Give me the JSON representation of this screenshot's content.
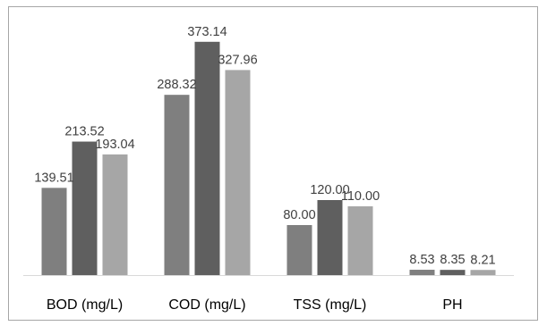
{
  "chart_data": {
    "type": "bar",
    "categories": [
      "BOD (mg/L)",
      "COD (mg/L)",
      "TSS (mg/L)",
      "PH"
    ],
    "series": [
      {
        "values": [
          139.51,
          288.32,
          80.0,
          8.53
        ],
        "labels": [
          "139.51",
          "288.32",
          "80.00",
          "8.53"
        ],
        "color": "#7f7f7f"
      },
      {
        "values": [
          213.52,
          373.14,
          120.0,
          8.35
        ],
        "labels": [
          "213.52",
          "373.14",
          "120.00",
          "8.35"
        ],
        "color": "#5f5f5f"
      },
      {
        "values": [
          193.04,
          327.96,
          110.0,
          8.21
        ],
        "labels": [
          "193.04",
          "327.96",
          "110.00",
          "8.21"
        ],
        "color": "#a6a6a6"
      }
    ],
    "ylim": [
      0,
      400
    ],
    "grid": false,
    "legend": "none",
    "axis_color": "#d9d9d9"
  }
}
